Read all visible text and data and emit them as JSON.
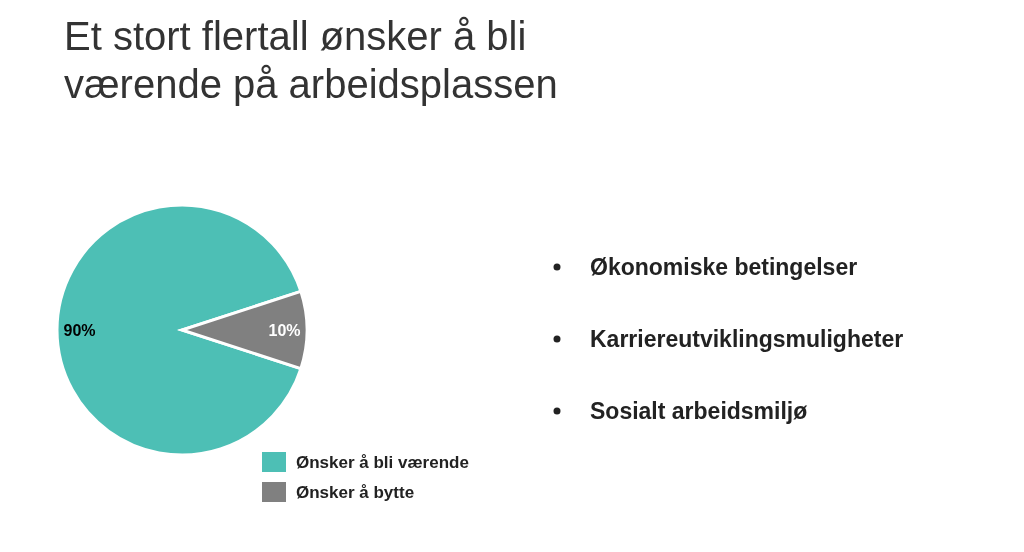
{
  "chart_data": {
    "type": "pie",
    "title": "Et stort flertall ønsker å bli værende på arbeidsplassen",
    "categories": [
      "Ønsker å bli værende",
      "Ønsker å bytte"
    ],
    "values": [
      90,
      10
    ],
    "colors": [
      "#4dbfb5",
      "#808080"
    ],
    "value_labels": [
      "90%",
      "10%"
    ],
    "legend": "bottom",
    "annotations": [
      "Økonomiske betingelser",
      "Karriereutviklingsmuligheter",
      "Sosialt arbeidsmiljø"
    ]
  }
}
